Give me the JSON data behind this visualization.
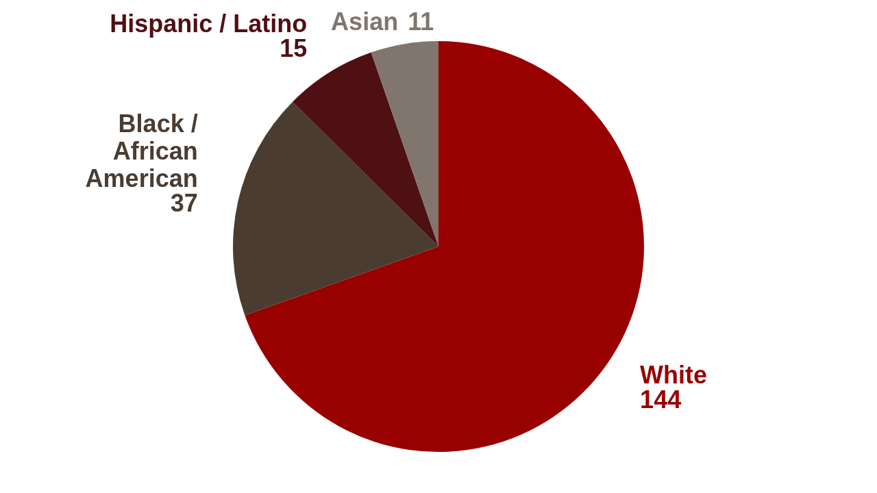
{
  "chart_data": {
    "type": "pie",
    "categories": [
      "White",
      "Black /\nAfrican\nAmerican",
      "Hispanic / Latino",
      "Asian"
    ],
    "values": [
      144,
      37,
      15,
      11
    ],
    "colors": [
      "#990000",
      "#4a3c31",
      "#4f1014",
      "#80766d"
    ],
    "data_labels": true
  }
}
